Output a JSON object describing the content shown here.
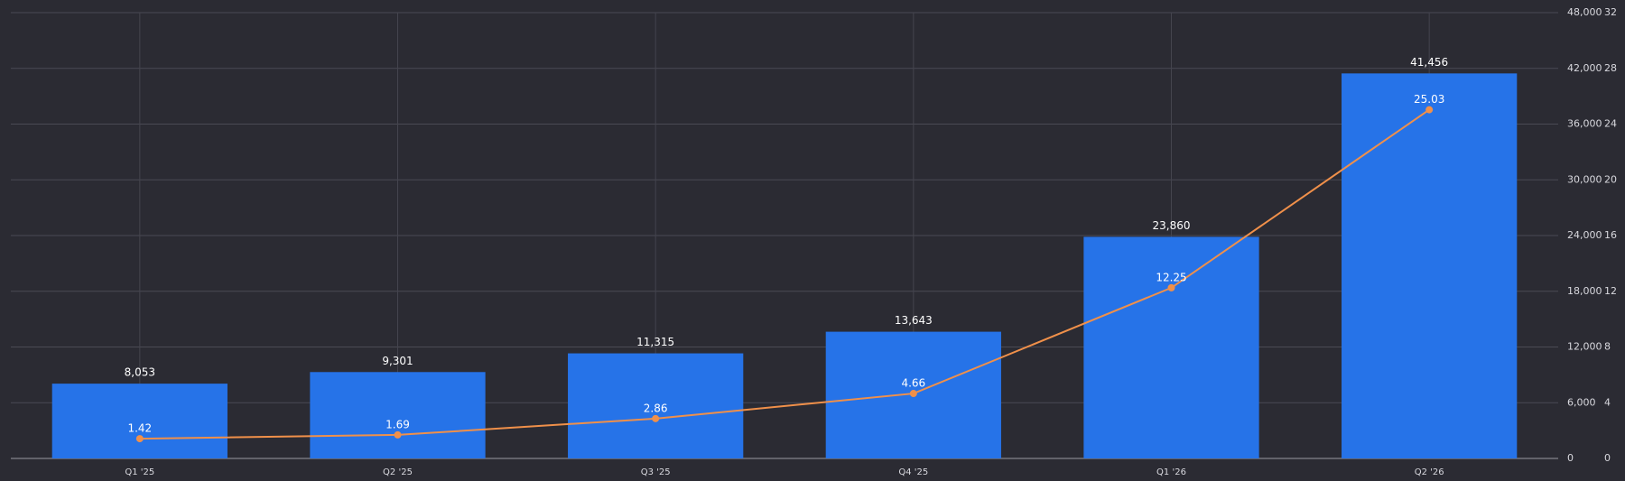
{
  "chart_data": {
    "type": "bar-line",
    "categories": [
      "Q1 '25",
      "Q2 '25",
      "Q3 '25",
      "Q4 '25",
      "Q1 '26",
      "Q2 '26"
    ],
    "series": [
      {
        "type": "bar",
        "color": "#2673e8",
        "values": [
          8053,
          9301,
          11315,
          13643,
          23860,
          41456
        ],
        "value_labels": [
          "8,053",
          "9,301",
          "11,315",
          "13,643",
          "23,860",
          "41,456"
        ]
      },
      {
        "type": "line",
        "axis": "y2",
        "color": "#f0904a",
        "values": [
          1.42,
          1.69,
          2.86,
          4.66,
          12.25,
          25.03
        ]
      }
    ],
    "ylim": [
      0,
      48000
    ],
    "yticks": [
      0,
      {
        "value": 6000,
        "label": "6,000"
      },
      {
        "value": 12000,
        "label": "12,000"
      },
      {
        "value": 18000,
        "label": "18,000"
      },
      {
        "value": 24000,
        "label": "24,000"
      },
      {
        "value": 30000,
        "label": "30,000"
      },
      {
        "value": 36000,
        "label": "36,000"
      },
      {
        "value": 42000,
        "label": "42,000"
      },
      {
        "value": 48000,
        "label": "48,000"
      }
    ],
    "y2lim": [
      0,
      32
    ],
    "y2ticks": [
      0,
      4,
      8,
      12,
      16,
      20,
      24,
      28,
      32
    ],
    "grid": true
  }
}
